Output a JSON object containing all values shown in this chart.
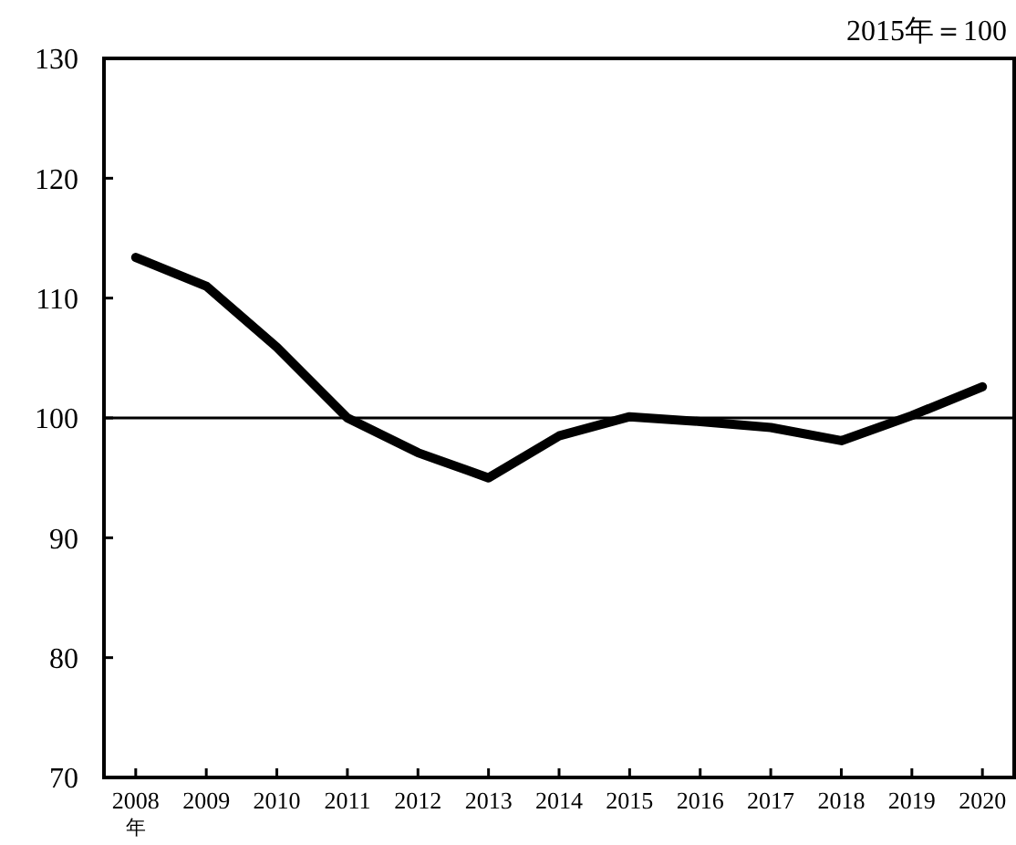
{
  "chart_data": {
    "type": "line",
    "categories": [
      "2008\n年",
      "2009",
      "2010",
      "2011",
      "2012",
      "2013",
      "2014",
      "2015",
      "2016",
      "2017",
      "2018",
      "2019",
      "2020"
    ],
    "series": [
      {
        "color": "#000000",
        "values": [
          113.4,
          111.0,
          105.9,
          100.0,
          97.1,
          95.0,
          98.5,
          100.1,
          99.7,
          99.2,
          98.1,
          100.2,
          102.6
        ]
      }
    ],
    "ylim": [
      70,
      130
    ],
    "yticks": [
      70,
      80,
      90,
      100,
      110,
      120,
      130
    ],
    "ref_lines": [
      {
        "axis": "y",
        "value": 100,
        "color": "#000000"
      }
    ],
    "annotations": [
      "2015年＝100"
    ],
    "grid": false,
    "marker": "none",
    "line_style": "solid"
  }
}
